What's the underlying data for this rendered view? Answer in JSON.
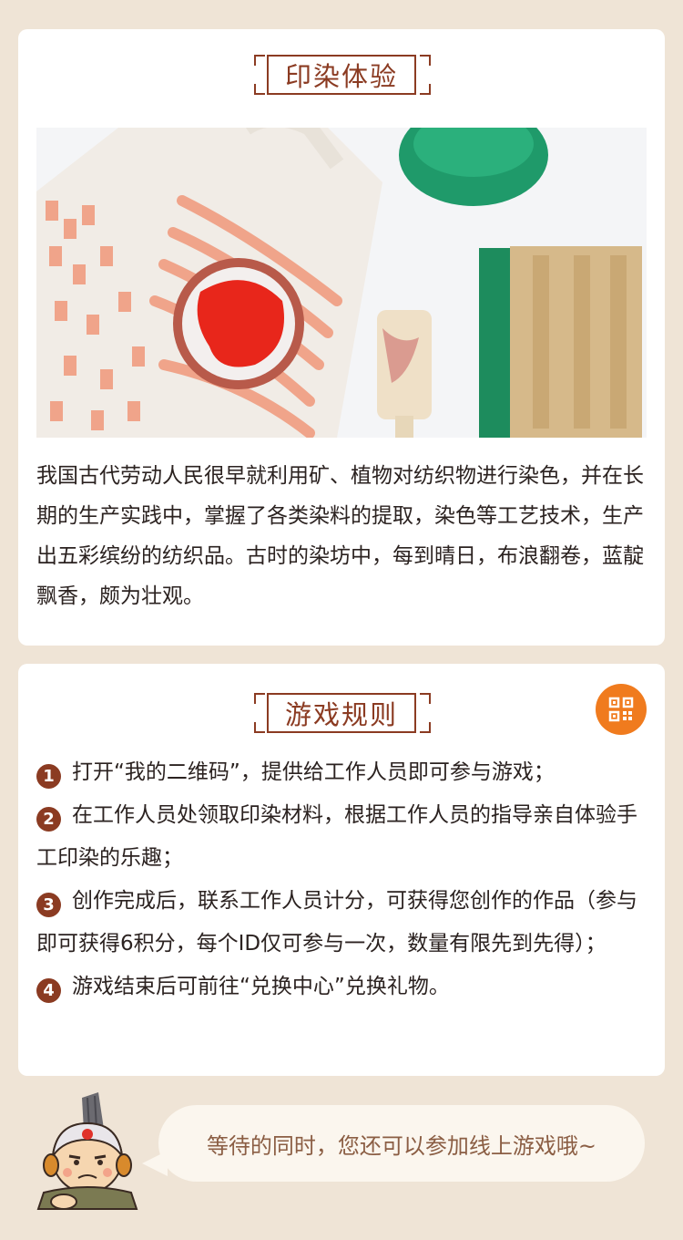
{
  "section1": {
    "title": "印染体验",
    "description": "我国古代劳动人民很早就利用矿、植物对纺织物进行染色，并在长期的生产实践中，掌握了各类染料的提取，染色等工艺技术，生产出五彩缤纷的纺织品。古时的染坊中，每到晴日，布浪翻卷，蓝靛飘香，颇为壮观。"
  },
  "section2": {
    "title": "游戏规则",
    "rules": [
      {
        "num": "1",
        "text": "打开“我的二维码”，提供给工作人员即可参与游戏；"
      },
      {
        "num": "2",
        "text": "在工作人员处领取印染材料，根据工作人员的指导亲自体验手工印染的乐趣；"
      },
      {
        "num": "3",
        "text": "创作完成后，联系工作人员计分，可获得您创作的作品（参与即可获得6积分，每个ID仅可参与一次，数量有限先到先得）；"
      },
      {
        "num": "4",
        "text": "游戏结束后可前往“兑换中心”兑换礼物。"
      }
    ]
  },
  "bubble_text": "等待的同时，您还可以参加线上游戏哦~",
  "icons": {
    "qr": "qr-code-icon"
  },
  "colors": {
    "accent": "#8b3b22",
    "qr_button": "#f07b1e",
    "background": "#efe4d6"
  }
}
